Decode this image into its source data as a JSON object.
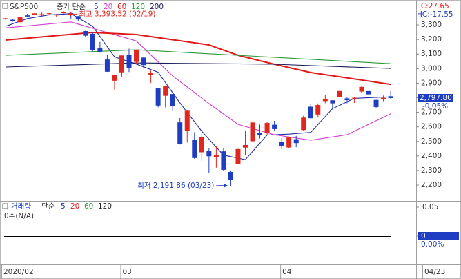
{
  "chart_data": {
    "type": "candlestick",
    "title": "S&P500",
    "indicator_label": "종가 단순",
    "lc_label": "LC:27.65",
    "hc_label": "HC:-17.55",
    "high_label": "최고 3,393.52 (02/19)",
    "low_label": "최저 2,191.86 (03/23)",
    "last_label": "2,797.80",
    "change_label": "-0.05%",
    "up_color": "#e0261f",
    "down_color": "#1e3dc2",
    "ylim": [
      2096,
      3471
    ],
    "yticks": [
      {
        "value": 3300,
        "label": "3,300"
      },
      {
        "value": 3200,
        "label": "3,200"
      },
      {
        "value": 3100,
        "label": "3,100"
      },
      {
        "value": 3000,
        "label": "3,000"
      },
      {
        "value": 2900,
        "label": "2,900"
      },
      {
        "value": 2800,
        "label": "2,800"
      },
      {
        "value": 2700,
        "label": "2,700"
      },
      {
        "value": 2600,
        "label": "2,600"
      },
      {
        "value": 2500,
        "label": "2,500"
      },
      {
        "value": 2400,
        "label": "2,400"
      },
      {
        "value": 2300,
        "label": "2,300"
      },
      {
        "value": 2200,
        "label": "2,200"
      }
    ],
    "categories": [
      "2020/02",
      null,
      null,
      null,
      null,
      null,
      null,
      null,
      null,
      null,
      null,
      null,
      null,
      null,
      null,
      null,
      "03",
      null,
      null,
      null,
      null,
      null,
      null,
      null,
      null,
      null,
      null,
      null,
      null,
      null,
      null,
      null,
      null,
      null,
      null,
      null,
      null,
      null,
      "04",
      null,
      null,
      null,
      null,
      null,
      null,
      null,
      null,
      null,
      null,
      null,
      null,
      null,
      null,
      "04/23"
    ],
    "open": [
      3344.0,
      3335.54,
      3318.28,
      3365.87,
      3370.5,
      3365.9,
      3378.08,
      3369.04,
      3380.39,
      3380.45,
      3360.5,
      3257.61,
      3238.94,
      3139.9,
      3062.54,
      2916.9,
      2974.28,
      3096.46,
      3045.75,
      3075.7,
      2954.2,
      2863.89,
      2813.48,
      2825.6,
      2630.86,
      2569.99,
      2508.59,
      2425.66,
      2436.5,
      2393.48,
      2431.94,
      2290.71,
      2344.44,
      2457.77,
      2501.29,
      2555.87,
      2558.98,
      2614.69,
      2498.08,
      2458.54,
      2514.92,
      2578.28,
      2738.65,
      2685.0,
      2776.99,
      2782.46,
      2805.1,
      2795.64,
      2799.34,
      2842.43,
      2845.62,
      2784.81,
      2787.89,
      2810.42
    ],
    "high": [
      3347.96,
      3341.42,
      3352.26,
      3375.63,
      3381.47,
      3385.09,
      3380.69,
      3375.01,
      3393.52,
      3389.15,
      3360.76,
      3259.81,
      3246.99,
      3182.51,
      3097.07,
      2959.72,
      3090.96,
      3136.72,
      3130.97,
      3083.04,
      2985.93,
      2863.89,
      2882.59,
      2825.6,
      2660.95,
      2711.33,
      2562.98,
      2553.93,
      2453.57,
      2466.97,
      2453.01,
      2300.73,
      2449.71,
      2571.42,
      2637.01,
      2615.91,
      2631.8,
      2641.39,
      2522.75,
      2533.22,
      2538.18,
      2676.85,
      2756.89,
      2760.75,
      2818.57,
      2782.46,
      2851.85,
      2801.88,
      2806.51,
      2879.22,
      2868.98,
      2785.54,
      2815.1,
      2844.9
    ],
    "low": [
      3334.39,
      3322.12,
      3317.77,
      3352.72,
      3369.72,
      3360.52,
      3366.15,
      3355.61,
      3378.83,
      3341.02,
      3328.45,
      3214.65,
      3118.77,
      3108.99,
      2977.39,
      2855.84,
      2945.19,
      2976.63,
      3034.38,
      2999.83,
      2901.54,
      2734.43,
      2734.0,
      2707.22,
      2478.86,
      2492.37,
      2380.94,
      2367.04,
      2280.52,
      2319.78,
      2295.56,
      2191.86,
      2344.44,
      2407.53,
      2500.72,
      2520.02,
      2545.28,
      2571.15,
      2447.49,
      2455.79,
      2459.96,
      2574.57,
      2657.67,
      2663.3,
      2762.36,
      2721.17,
      2805.1,
      2761.54,
      2764.32,
      2830.88,
      2820.43,
      2727.1,
      2775.95,
      2794.26
    ],
    "close": [
      3345.78,
      3327.71,
      3352.09,
      3357.75,
      3379.45,
      3373.94,
      3380.16,
      3370.29,
      3386.15,
      3373.23,
      3337.75,
      3225.89,
      3128.21,
      3116.39,
      2978.76,
      2954.22,
      3090.23,
      3003.37,
      3130.12,
      3023.94,
      2972.37,
      2746.56,
      2882.23,
      2741.38,
      2480.64,
      2711.02,
      2386.13,
      2529.19,
      2398.1,
      2409.39,
      2304.92,
      2237.4,
      2447.33,
      2475.56,
      2630.07,
      2541.47,
      2626.65,
      2584.59,
      2470.5,
      2526.9,
      2488.65,
      2663.68,
      2659.41,
      2749.98,
      2789.82,
      2761.63,
      2846.06,
      2783.36,
      2799.55,
      2874.56,
      2823.16,
      2736.56,
      2799.31,
      2797.8
    ],
    "series": [
      {
        "name": "5",
        "color": "#1f2ea0",
        "x": [
          0,
          3,
          6,
          9,
          12,
          15,
          18,
          21,
          24,
          27,
          30,
          33,
          36,
          39,
          42,
          45,
          48,
          51,
          53
        ],
        "values": [
          3290,
          3344,
          3369,
          3377,
          3290,
          3081,
          3031,
          2975,
          2765,
          2570,
          2406,
          2375,
          2544,
          2550,
          2562,
          2725,
          2796,
          2803,
          2806
        ]
      },
      {
        "name": "20",
        "color": "#d23fd2",
        "x": [
          0,
          9,
          18,
          23,
          28,
          32,
          37,
          42,
          47,
          53
        ],
        "values": [
          3280,
          3320,
          3190,
          2950,
          2760,
          2617,
          2546,
          2508,
          2546,
          2690
        ]
      },
      {
        "name": "60",
        "color": "#e01818",
        "x": [
          0,
          12,
          18,
          28,
          32,
          37,
          42,
          53
        ],
        "values": [
          3196,
          3248,
          3234,
          3163,
          3091,
          3030,
          2973,
          2892
        ]
      },
      {
        "name": "120",
        "color": "#2a9a3a",
        "x": [
          0,
          18,
          32,
          53
        ],
        "values": [
          3091,
          3129,
          3091,
          3034
        ]
      },
      {
        "name": "200",
        "color": "#1a1a5a",
        "x": [
          0,
          18,
          37,
          53
        ],
        "values": [
          3011,
          3039,
          3030,
          3001
        ]
      }
    ],
    "volume": {
      "label": "거래량",
      "indicator_label": "단순",
      "value_label": "0주(N/A)",
      "pct_label": "0.00%",
      "ylim": [
        0,
        0.05
      ],
      "yticks": [
        0.05,
        0
      ],
      "ma": [
        {
          "name": "5",
          "color": "#1f2ea0"
        },
        {
          "name": "20",
          "color": "#e01818"
        },
        {
          "name": "60",
          "color": "#2a9a3a"
        },
        {
          "name": "120",
          "color": "#222222"
        }
      ]
    }
  }
}
